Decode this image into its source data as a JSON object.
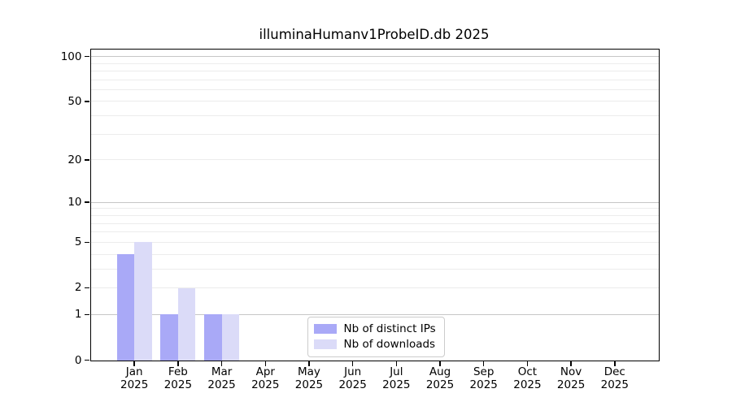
{
  "colors": {
    "distinct_ips_bar": "#a9a9f7",
    "downloads_bar": "#dbdbf8",
    "grid_major": "#c6c6c6",
    "grid_minor": "#ececec",
    "axis": "#000000",
    "legend_border": "#cccccc",
    "background": "#ffffff"
  },
  "chart_data": {
    "type": "bar",
    "title": "illuminaHumanv1ProbeID.db 2025",
    "categories": [
      "Jan",
      "Feb",
      "Mar",
      "Apr",
      "May",
      "Jun",
      "Jul",
      "Aug",
      "Sep",
      "Oct",
      "Nov",
      "Dec"
    ],
    "x_sublabel": "2025",
    "series": [
      {
        "name": "Nb of distinct IPs",
        "color": "#a9a9f7",
        "values": [
          4,
          1,
          1,
          0,
          0,
          0,
          0,
          0,
          0,
          0,
          0,
          0
        ]
      },
      {
        "name": "Nb of downloads",
        "color": "#dbdbf8",
        "values": [
          5,
          2,
          1,
          0,
          0,
          0,
          0,
          0,
          0,
          0,
          0,
          0
        ]
      }
    ],
    "xlabel": "",
    "ylabel": "",
    "y_scale": "log1p",
    "ylim": [
      0,
      112
    ],
    "y_tick_labels": [
      0,
      1,
      2,
      5,
      10,
      20,
      50,
      100
    ],
    "y_gridlines_emphasized": [
      1,
      10,
      100
    ],
    "y_gridlines_major": [
      2,
      5,
      20,
      50
    ],
    "y_gridlines_minor": [
      3,
      4,
      6,
      7,
      8,
      9,
      30,
      40,
      60,
      70,
      80,
      90
    ],
    "grid": "horizontal",
    "legend_position": "lower-center"
  }
}
